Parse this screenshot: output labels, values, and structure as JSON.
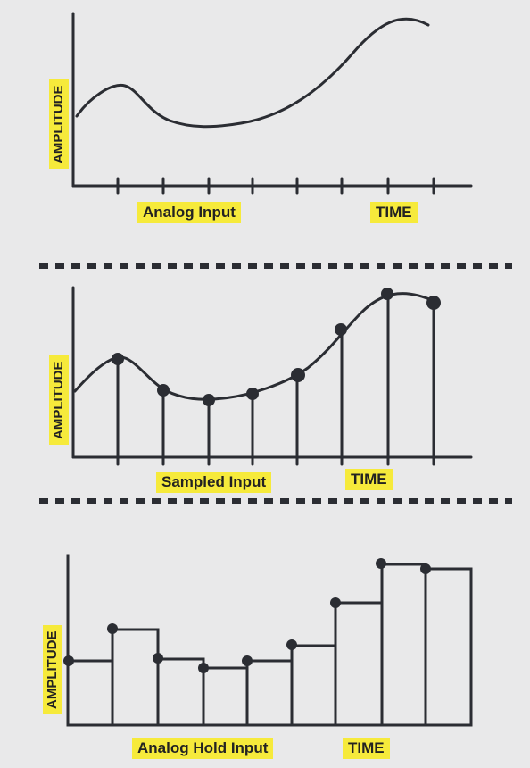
{
  "panels": [
    {
      "caption": "Analog Input",
      "time_label": "TIME",
      "y_label": "AMPLITUDE"
    },
    {
      "caption": "Sampled Input",
      "time_label": "TIME",
      "y_label": "AMPLITUDE"
    },
    {
      "caption": "Analog Hold Input",
      "time_label": "TIME",
      "y_label": "AMPLITUDE"
    }
  ],
  "colors": {
    "background": "#e9e9ea",
    "highlight": "#f6ea3b",
    "ink": "#2b2d33"
  }
}
